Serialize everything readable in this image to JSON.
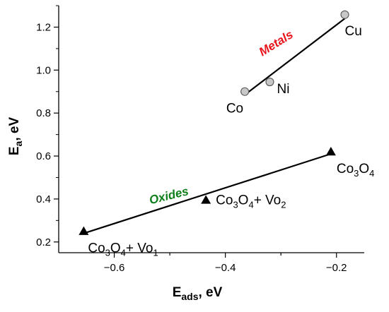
{
  "chart_data": {
    "type": "scatter",
    "xlim": [
      -0.7,
      -0.15
    ],
    "ylim": [
      0.15,
      1.3
    ],
    "x_ticks": [
      -0.6,
      -0.4,
      -0.2
    ],
    "x_tick_labels": [
      "−0.6",
      "−0.4",
      "−0.2"
    ],
    "y_ticks": [
      0.2,
      0.4,
      0.6,
      0.8,
      1.0,
      1.2
    ],
    "y_tick_labels": [
      "0.2",
      "0.4",
      "0.6",
      "0.8",
      "1.0",
      "1.2"
    ],
    "xlabel": {
      "main": "E",
      "sub": "ads",
      "unit": ", eV"
    },
    "ylabel": {
      "main": "E",
      "sub": "a",
      "unit": ", eV"
    },
    "grid": false,
    "series": [
      {
        "name": "Metals",
        "marker": "circle",
        "color": "#e8141b",
        "line_color": "#000000",
        "points": [
          {
            "x": -0.365,
            "y": 0.9,
            "label": [
              {
                "t": "Co"
              }
            ]
          },
          {
            "x": -0.32,
            "y": 0.945,
            "label": [
              {
                "t": "Ni"
              }
            ]
          },
          {
            "x": -0.185,
            "y": 1.258,
            "label": [
              {
                "t": "Cu"
              }
            ]
          }
        ],
        "fit": [
          [
            -0.365,
            0.885
          ],
          [
            -0.185,
            1.24
          ]
        ]
      },
      {
        "name": "Oxides",
        "marker": "triangle",
        "color": "#0d7f1b",
        "line_color": "#000000",
        "points": [
          {
            "x": -0.655,
            "y": 0.25,
            "label": [
              {
                "t": "Co"
              },
              {
                "t": "3",
                "sub": true
              },
              {
                "t": "O"
              },
              {
                "t": "4",
                "sub": true
              },
              {
                "t": "+ Vo"
              },
              {
                "t": "1",
                "sub": true
              }
            ]
          },
          {
            "x": -0.435,
            "y": 0.395,
            "label": [
              {
                "t": "Co"
              },
              {
                "t": "3",
                "sub": true
              },
              {
                "t": "O"
              },
              {
                "t": "4",
                "sub": true
              },
              {
                "t": "+ Vo"
              },
              {
                "t": "2",
                "sub": true
              }
            ]
          },
          {
            "x": -0.21,
            "y": 0.62,
            "label": [
              {
                "t": "Co"
              },
              {
                "t": "3",
                "sub": true
              },
              {
                "t": "O"
              },
              {
                "t": "4",
                "sub": true
              }
            ]
          }
        ],
        "fit": [
          [
            -0.655,
            0.24
          ],
          [
            -0.21,
            0.61
          ]
        ]
      }
    ]
  }
}
